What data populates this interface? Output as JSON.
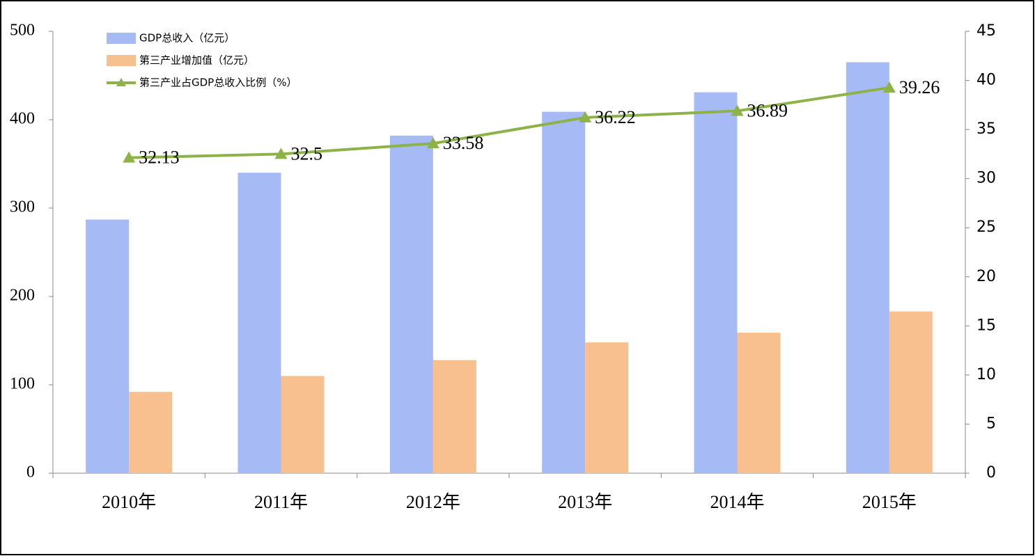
{
  "chart_data": {
    "type": "bar_line",
    "categories": [
      "2010年",
      "2011年",
      "2012年",
      "2013年",
      "2014年",
      "2015年"
    ],
    "series": [
      {
        "name": "GDP总收入（亿元）",
        "type": "bar",
        "color": "#a6bbf6",
        "values": [
          287,
          340,
          382,
          409,
          431,
          465
        ]
      },
      {
        "name": "第三产业增加值（亿元）",
        "type": "bar",
        "color": "#f9c08f",
        "values": [
          92,
          110,
          128,
          148,
          159,
          183
        ]
      },
      {
        "name": "第三产业占GDP总收入比例（%）",
        "type": "line",
        "axis": "y2",
        "color": "#8db348",
        "values": [
          32.13,
          32.5,
          33.58,
          36.22,
          36.89,
          39.26
        ]
      }
    ],
    "ylim": [
      0,
      500
    ],
    "yticks": [
      0,
      100,
      200,
      300,
      400,
      500
    ],
    "y2lim": [
      0,
      45
    ],
    "y2ticks": [
      0,
      5,
      10,
      15,
      20,
      25,
      30,
      35,
      40,
      45
    ],
    "legend": "top-left"
  }
}
